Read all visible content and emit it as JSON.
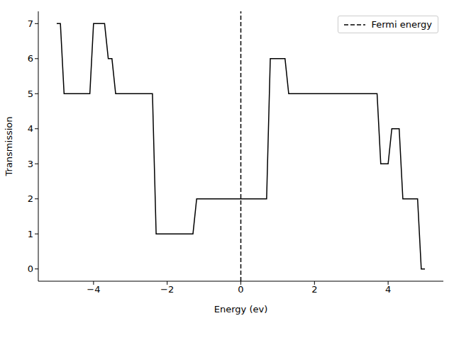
{
  "chart_data": {
    "type": "line",
    "x_label": "Energy (ev)",
    "y_label": "Transmission",
    "x": [
      -5.0,
      -4.9,
      -4.8,
      -4.1,
      -4.0,
      -3.7,
      -3.6,
      -3.5,
      -3.4,
      -2.4,
      -2.3,
      -1.3,
      -1.2,
      0.7,
      0.8,
      1.2,
      1.3,
      3.7,
      3.8,
      4.0,
      4.1,
      4.3,
      4.4,
      4.8,
      4.9,
      5.0
    ],
    "series": [
      {
        "color": "#000000",
        "line_style": "solid",
        "values": [
          7,
          7,
          5,
          5,
          7,
          7,
          6,
          6,
          5,
          5,
          1,
          1,
          2,
          2,
          6,
          6,
          5,
          5,
          3,
          3,
          4,
          4,
          2,
          2,
          0,
          0
        ]
      }
    ],
    "vlines": [
      {
        "x": 0,
        "name": "Fermi energy",
        "color": "#000000",
        "line_style": "dashed"
      }
    ],
    "xlim": [
      -5.5,
      5.5
    ],
    "xticks": [
      {
        "value": -4,
        "label": "−4"
      },
      {
        "value": -2,
        "label": "−2"
      },
      0,
      2,
      4
    ],
    "ylim": [
      -0.35,
      7.35
    ],
    "yticks": [
      0,
      1,
      2,
      3,
      4,
      5,
      6,
      7
    ],
    "grid": false,
    "legend": "upper right"
  }
}
